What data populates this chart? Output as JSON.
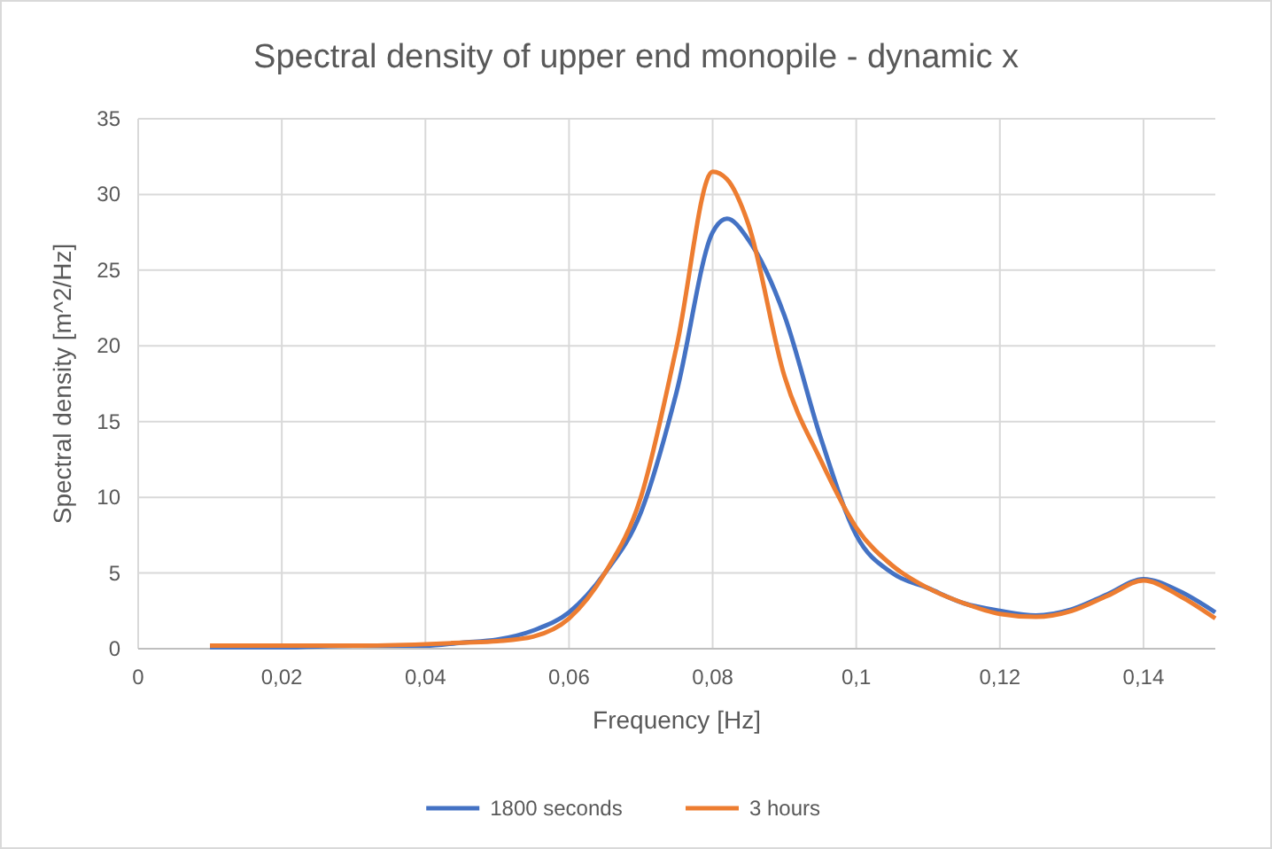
{
  "chart_data": {
    "type": "line",
    "title": "Spectral density of upper end monopile - dynamic x",
    "xlabel": "Frequency [Hz]",
    "ylabel": "Spectral density [m^2/Hz]",
    "x": [
      0.01,
      0.02,
      0.03,
      0.04,
      0.045,
      0.05,
      0.055,
      0.06,
      0.065,
      0.07,
      0.075,
      0.08,
      0.082,
      0.085,
      0.09,
      0.095,
      0.1,
      0.105,
      0.11,
      0.115,
      0.12,
      0.125,
      0.13,
      0.135,
      0.14,
      0.145,
      0.15
    ],
    "series": [
      {
        "name": "1800 seconds",
        "color": "#4472c4",
        "values": [
          0.1,
          0.1,
          0.2,
          0.2,
          0.4,
          0.6,
          1.2,
          2.4,
          5,
          9,
          17,
          27.5,
          28.4,
          27,
          22,
          14,
          7.5,
          5,
          4,
          3,
          2.5,
          2.2,
          2.6,
          3.6,
          4.6,
          3.8,
          2.4
        ]
      },
      {
        "name": "3 hours",
        "color": "#ed7d31",
        "values": [
          0.2,
          0.2,
          0.2,
          0.3,
          0.4,
          0.5,
          0.8,
          2,
          5,
          10,
          20,
          31.5,
          31,
          28,
          18,
          12.5,
          8,
          5.5,
          4,
          3,
          2.3,
          2.1,
          2.5,
          3.5,
          4.5,
          3.5,
          2
        ]
      }
    ],
    "xlim": [
      0,
      0.15
    ],
    "xticks": [
      0,
      {
        "value": 0.02,
        "label": "0,02"
      },
      {
        "value": 0.04,
        "label": "0,04"
      },
      {
        "value": 0.06,
        "label": "0,06"
      },
      {
        "value": 0.08,
        "label": "0,08"
      },
      {
        "value": 0.1,
        "label": "0,1"
      },
      {
        "value": 0.12,
        "label": "0,12"
      },
      {
        "value": 0.14,
        "label": "0,14"
      }
    ],
    "ylim": [
      0,
      35
    ],
    "yticks": [
      0,
      5,
      10,
      15,
      20,
      25,
      30,
      35
    ],
    "grid": true,
    "legend": "bottom",
    "marker": "none",
    "line_style": "solid"
  }
}
